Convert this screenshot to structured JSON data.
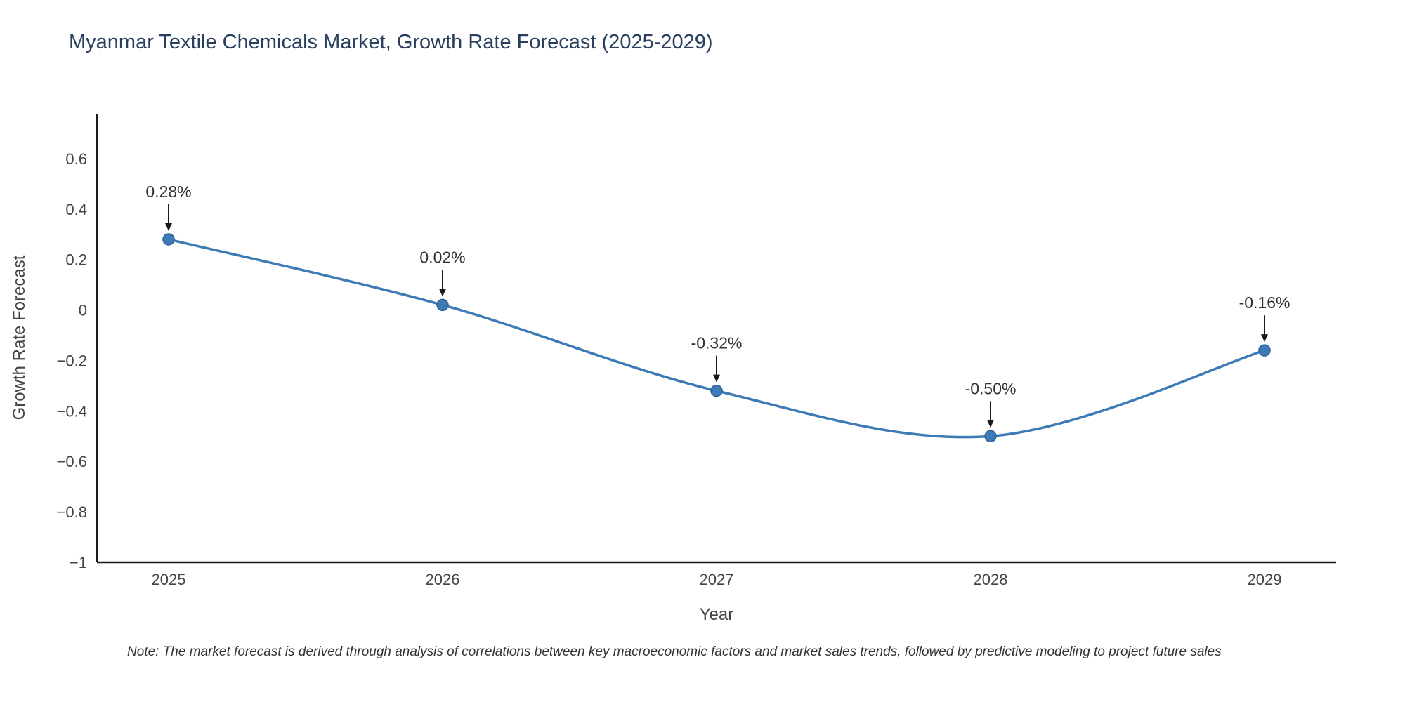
{
  "note": "Note: The market forecast is derived through analysis of correlations between key macroeconomic factors and market sales trends, followed by predictive modeling to project future sales",
  "chart_data": {
    "type": "line",
    "title": "Myanmar Textile Chemicals Market, Growth Rate Forecast (2025-2029)",
    "xlabel": "Year",
    "ylabel": "Growth Rate Forecast",
    "x": [
      "2025",
      "2026",
      "2027",
      "2028",
      "2029"
    ],
    "values": [
      0.28,
      0.02,
      -0.32,
      -0.5,
      -0.16
    ],
    "point_labels": [
      "0.28%",
      "0.02%",
      "-0.32%",
      "-0.50%",
      "-0.16%"
    ],
    "ylim": [
      -1,
      0.778
    ],
    "yticks": [
      0.6,
      0.4,
      0.2,
      0,
      -0.2,
      -0.4,
      -0.6,
      -0.8,
      -1
    ],
    "ytick_labels": [
      "0.6",
      "0.4",
      "0.2",
      "0",
      "−0.2",
      "−0.4",
      "−0.6",
      "−0.8",
      "−1"
    ],
    "grid": false,
    "legend": "none",
    "smooth": true,
    "line_color": "#3d7ab6",
    "marker_color": "#3d7ab6",
    "marker_edge_color": "#2e6296",
    "axis_color": "#1a1a1a",
    "tick_label_color": "#444444",
    "annotation_color": "#333333",
    "title_color": "#2a3f5f"
  }
}
